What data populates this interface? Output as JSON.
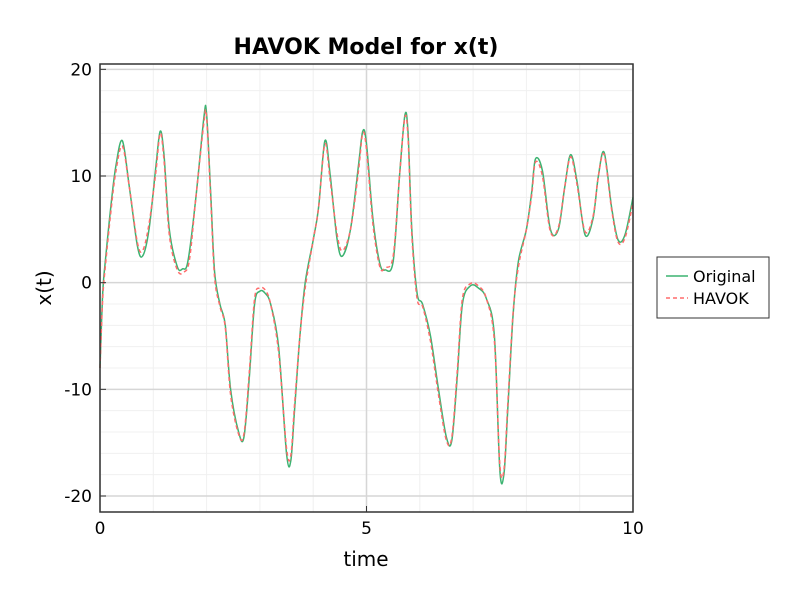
{
  "chart_data": {
    "type": "line",
    "title": "HAVOK Model for x(t)",
    "xlabel": "time",
    "ylabel": "x(t)",
    "xlim": [
      0,
      10
    ],
    "ylim": [
      -21.5,
      20.5
    ],
    "xticks": [
      0,
      5,
      10
    ],
    "xtick_labels": [
      "0",
      "5",
      "10"
    ],
    "yticks": [
      20,
      10,
      0,
      -10,
      -20
    ],
    "ytick_labels": [
      "20",
      "10",
      "0",
      "-10",
      "-20"
    ],
    "grid": true,
    "legend_position": "right",
    "colors": {
      "original": "#3cb371",
      "havok": "#ff6b6b"
    },
    "series": [
      {
        "name": "Original",
        "style": "solid",
        "x": [
          0,
          0.05,
          0.1,
          0.2,
          0.3,
          0.42,
          0.55,
          0.7,
          0.8,
          0.92,
          1.05,
          1.13,
          1.2,
          1.3,
          1.45,
          1.55,
          1.65,
          1.8,
          1.95,
          2.0,
          2.08,
          2.15,
          2.25,
          2.35,
          2.45,
          2.6,
          2.7,
          2.8,
          2.9,
          3.0,
          3.1,
          3.2,
          3.35,
          3.5,
          3.58,
          3.65,
          3.75,
          3.85,
          4.0,
          4.1,
          4.22,
          4.32,
          4.45,
          4.55,
          4.7,
          4.85,
          4.93,
          5.0,
          5.12,
          5.25,
          5.35,
          5.5,
          5.62,
          5.72,
          5.78,
          5.85,
          5.95,
          6.05,
          6.2,
          6.35,
          6.5,
          6.6,
          6.7,
          6.8,
          6.95,
          7.1,
          7.25,
          7.4,
          7.5,
          7.58,
          7.65,
          7.75,
          7.85,
          8.0,
          8.1,
          8.17,
          8.3,
          8.45,
          8.6,
          8.72,
          8.83,
          8.95,
          9.1,
          9.25,
          9.35,
          9.46,
          9.6,
          9.72,
          9.85,
          10.0
        ],
        "y": [
          -8,
          -1,
          2,
          7,
          11,
          13.3,
          9,
          3.5,
          2.5,
          5,
          11,
          14.2,
          12,
          5,
          1.5,
          1.3,
          2,
          8,
          15.5,
          15.8,
          8,
          1,
          -2,
          -4,
          -10,
          -14,
          -14.5,
          -9,
          -2,
          -0.8,
          -1,
          -2,
          -6,
          -16,
          -16.7,
          -12,
          -5,
          0,
          4,
          7,
          13.3,
          10,
          4,
          2.5,
          5,
          11,
          14.2,
          13,
          6,
          1.8,
          1.2,
          2,
          10,
          15.7,
          14,
          5,
          -1,
          -2,
          -5,
          -10,
          -14.5,
          -14.8,
          -9,
          -2,
          -0.3,
          -0.5,
          -1.5,
          -5,
          -17.5,
          -17.9,
          -12,
          -3,
          2,
          5,
          8.5,
          11.6,
          10.5,
          5,
          5,
          9,
          12,
          9.5,
          4.5,
          6,
          10,
          12.2,
          7,
          4,
          4.5,
          8
        ]
      },
      {
        "name": "HAVOK",
        "style": "dashed",
        "x": [
          0,
          0.05,
          0.1,
          0.2,
          0.3,
          0.42,
          0.55,
          0.7,
          0.8,
          0.92,
          1.05,
          1.13,
          1.2,
          1.3,
          1.45,
          1.58,
          1.68,
          1.8,
          1.95,
          2.0,
          2.08,
          2.15,
          2.25,
          2.35,
          2.45,
          2.6,
          2.7,
          2.8,
          2.9,
          3.0,
          3.1,
          3.2,
          3.35,
          3.5,
          3.58,
          3.65,
          3.75,
          3.85,
          4.0,
          4.1,
          4.22,
          4.32,
          4.45,
          4.55,
          4.7,
          4.85,
          4.93,
          5.0,
          5.12,
          5.25,
          5.35,
          5.5,
          5.62,
          5.72,
          5.78,
          5.85,
          5.95,
          6.05,
          6.2,
          6.35,
          6.5,
          6.6,
          6.7,
          6.8,
          6.95,
          7.1,
          7.25,
          7.4,
          7.5,
          7.58,
          7.65,
          7.75,
          7.85,
          8.0,
          8.1,
          8.17,
          8.3,
          8.45,
          8.6,
          8.72,
          8.83,
          8.95,
          9.1,
          9.25,
          9.35,
          9.46,
          9.6,
          9.72,
          9.85,
          10.0
        ],
        "y": [
          -8,
          -1.5,
          1.5,
          6.5,
          10.5,
          12.8,
          9,
          3.8,
          3,
          5.5,
          10.5,
          14,
          11.5,
          4.5,
          1.2,
          1.0,
          2.2,
          8,
          15,
          15.5,
          7.5,
          0.5,
          -2.2,
          -4.2,
          -10.5,
          -14.2,
          -14.2,
          -8.5,
          -1.5,
          -0.5,
          -0.7,
          -2,
          -6.5,
          -15.5,
          -16.2,
          -11.5,
          -5,
          -0.5,
          4,
          7,
          13,
          9.5,
          4.5,
          3,
          5,
          10.5,
          14,
          12.5,
          5.5,
          1.5,
          1.4,
          2.5,
          10,
          15.5,
          13.5,
          4.5,
          -1.5,
          -2.2,
          -5.5,
          -10.5,
          -14.8,
          -14.5,
          -8.5,
          -1.5,
          -0.1,
          -0.3,
          -1.5,
          -5.5,
          -17,
          -17.5,
          -11.5,
          -2.8,
          1.5,
          5,
          8.2,
          11.3,
          10,
          4.8,
          5.2,
          9,
          11.8,
          9.2,
          4.8,
          6.2,
          10,
          12,
          6.8,
          3.8,
          4.2,
          7.5
        ]
      }
    ]
  }
}
